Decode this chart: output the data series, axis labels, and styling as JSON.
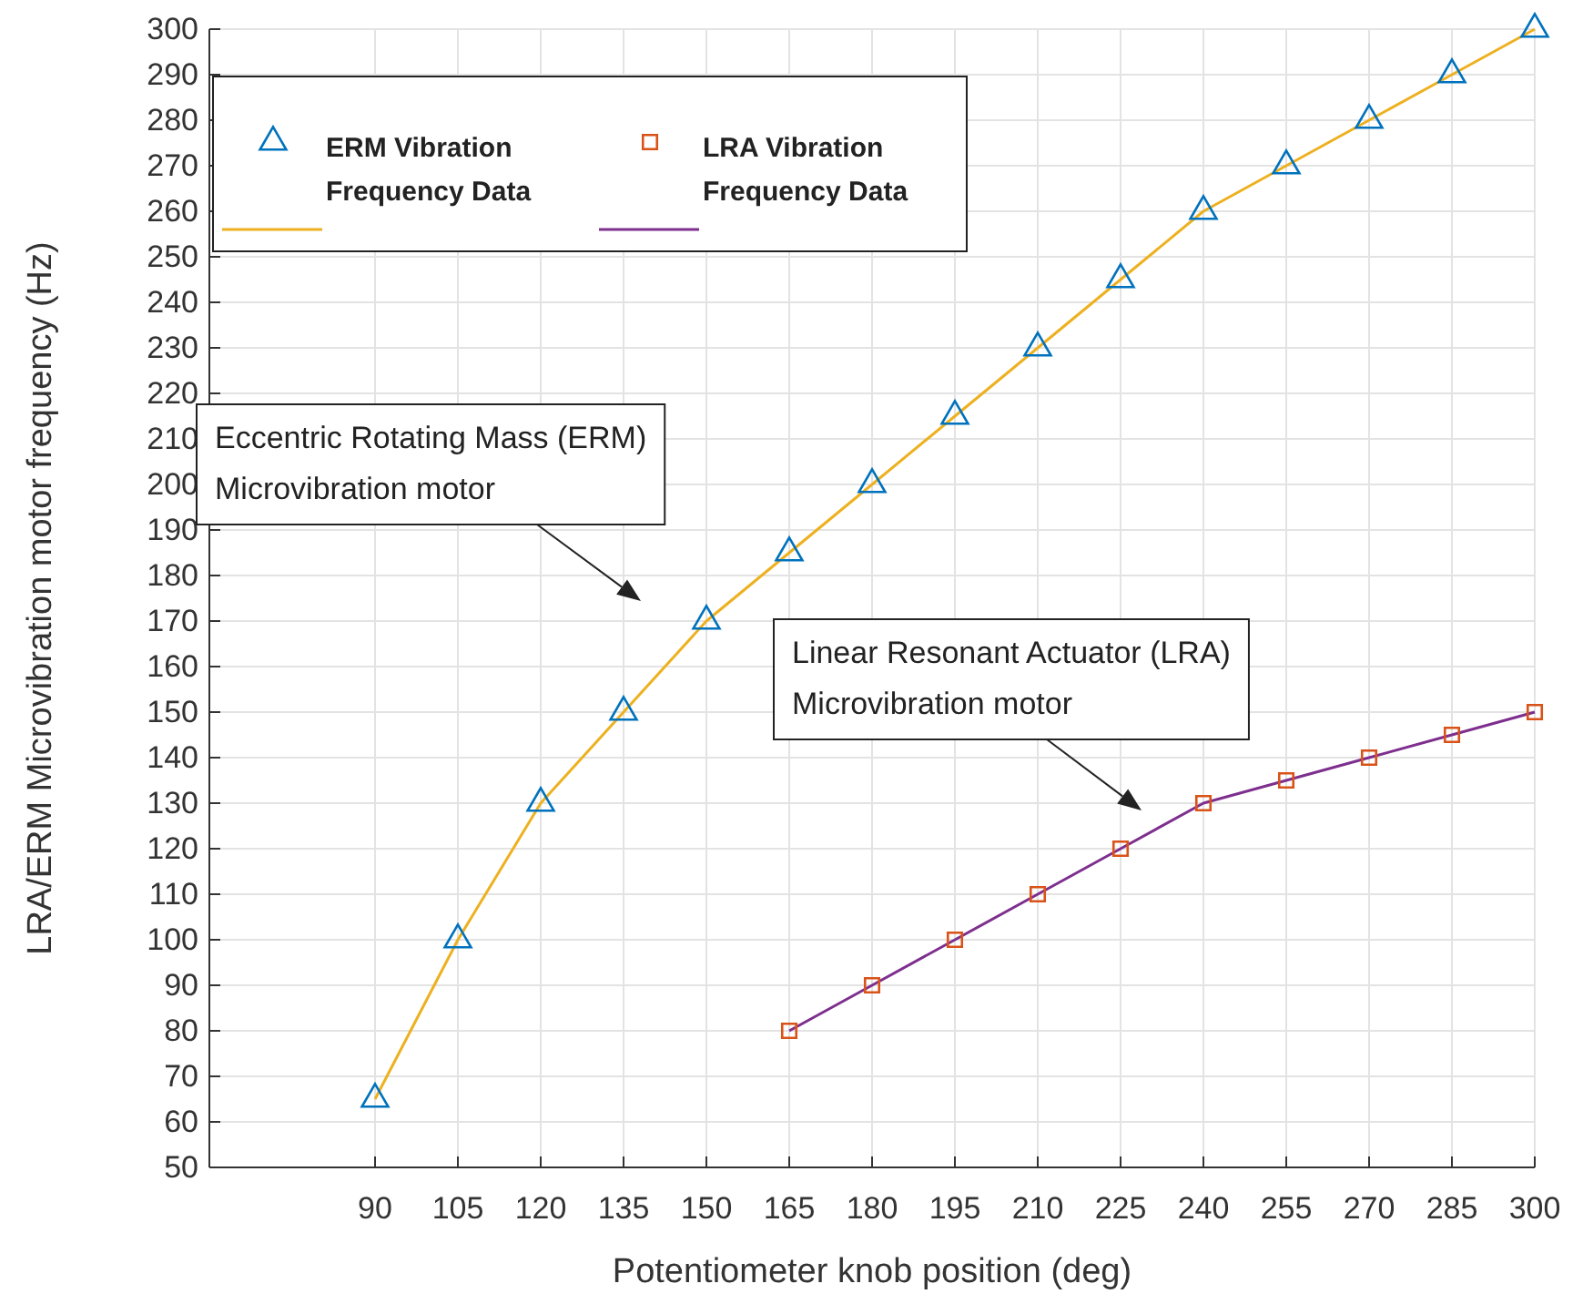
{
  "chart_data": {
    "type": "line",
    "xlabel": "Potentiometer knob position (deg)",
    "ylabel": "LRA/ERM Microvibration motor frequency (Hz)",
    "xlim": [
      60,
      300
    ],
    "xticks": [
      90,
      105,
      120,
      135,
      150,
      165,
      180,
      195,
      210,
      225,
      240,
      255,
      270,
      285,
      300
    ],
    "ylim": [
      50,
      300
    ],
    "yticks": [
      50,
      60,
      70,
      80,
      90,
      100,
      110,
      120,
      130,
      140,
      150,
      160,
      170,
      180,
      190,
      200,
      210,
      220,
      230,
      240,
      250,
      260,
      270,
      280,
      290,
      300
    ],
    "grid": true,
    "legend": "top left",
    "series": [
      {
        "name": "ERM Vibration Frequency Data",
        "type": "scatter",
        "marker": "triangle",
        "color": "#0072bd",
        "x": [
          90,
          105,
          120,
          135,
          150,
          165,
          180,
          195,
          210,
          225,
          240,
          255,
          270,
          285,
          300
        ],
        "values": [
          65,
          100,
          130,
          150,
          170,
          185,
          200,
          215,
          230,
          245,
          260,
          270,
          280,
          290,
          300
        ]
      },
      {
        "marker": "none",
        "color": "#edb120",
        "x": [
          90,
          105,
          120,
          135,
          150,
          165,
          180,
          195,
          210,
          225,
          240,
          255,
          270,
          285,
          300
        ],
        "values": [
          65,
          100,
          130,
          150,
          170,
          185,
          200,
          215,
          230,
          245,
          260,
          270,
          280,
          290,
          300
        ]
      },
      {
        "name": "LRA Vibration Frequency Data",
        "type": "scatter",
        "marker": "square",
        "color": "#d95319",
        "x": [
          165,
          180,
          195,
          210,
          225,
          240,
          255,
          270,
          285,
          300
        ],
        "values": [
          80,
          90,
          100,
          110,
          120,
          130,
          135,
          140,
          145,
          150
        ]
      },
      {
        "marker": "none",
        "color": "#7e2f8e",
        "x": [
          165,
          180,
          195,
          210,
          225,
          240,
          255,
          270,
          285,
          300
        ],
        "values": [
          80,
          90,
          100,
          110,
          120,
          130,
          135,
          140,
          145,
          150
        ]
      }
    ],
    "annotations": [
      "Eccentric Rotating Mass (ERM)\nMicrovibration motor",
      "Linear Resonant Actuator (LRA)\nMicrovibration motor"
    ]
  }
}
